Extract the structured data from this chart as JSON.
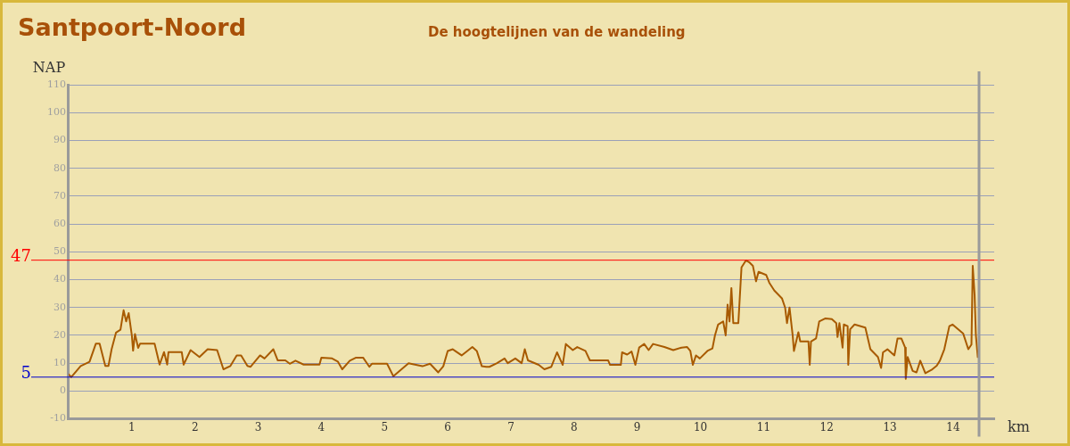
{
  "chart_data": {
    "type": "line",
    "title": "Santpoort-Noord",
    "subtitle": "De hoogtelijnen van de wandeling",
    "xlabel": "km",
    "ylabel": "NAP",
    "xlim": [
      0,
      14.65
    ],
    "xticks": [
      1,
      2,
      3,
      4,
      5,
      6,
      7,
      8,
      9,
      10,
      11,
      12,
      13,
      14
    ],
    "ylim": [
      -10,
      110
    ],
    "yticks": [
      -10,
      0,
      10,
      20,
      30,
      40,
      50,
      60,
      70,
      80,
      90,
      100,
      110
    ],
    "grid": "y",
    "legend": false,
    "marker": "none",
    "line_style": "solid",
    "ref_lines": [
      {
        "axis": "y",
        "value": 47,
        "label": "47",
        "color": "#ff0000"
      },
      {
        "axis": "y",
        "value": 5,
        "label": "5",
        "color": "#0000cc"
      },
      {
        "axis": "x",
        "value": 14.41,
        "color": "#9a9a9a"
      }
    ],
    "series": [
      {
        "color": "#a85a00",
        "x": [
          0,
          0.04,
          0.19,
          0.33,
          0.43,
          0.49,
          0.58,
          0.63,
          0.68,
          0.75,
          0.82,
          0.87,
          0.91,
          0.95,
          1.0,
          1.02,
          1.05,
          1.1,
          1.13,
          1.36,
          1.44,
          1.51,
          1.56,
          1.58,
          1.79,
          1.82,
          1.93,
          2.07,
          2.2,
          2.35,
          2.45,
          2.56,
          2.66,
          2.73,
          2.83,
          2.88,
          3.03,
          3.1,
          3.24,
          3.31,
          3.43,
          3.5,
          3.59,
          3.72,
          3.97,
          4.0,
          4.17,
          4.26,
          4.33,
          4.45,
          4.55,
          4.66,
          4.76,
          4.8,
          5.04,
          5.14,
          5.38,
          5.6,
          5.72,
          5.85,
          5.93,
          6.0,
          6.08,
          6.22,
          6.39,
          6.46,
          6.54,
          6.61,
          6.66,
          6.78,
          6.9,
          6.95,
          7.07,
          7.17,
          7.22,
          7.27,
          7.44,
          7.53,
          7.64,
          7.73,
          7.82,
          7.87,
          7.98,
          8.05,
          8.18,
          8.25,
          8.54,
          8.57,
          8.74,
          8.76,
          8.84,
          8.91,
          8.97,
          9.03,
          9.11,
          9.18,
          9.25,
          9.43,
          9.57,
          9.7,
          9.79,
          9.84,
          9.88,
          9.93,
          9.99,
          10.11,
          10.19,
          10.23,
          10.28,
          10.36,
          10.4,
          10.43,
          10.46,
          10.49,
          10.52,
          10.6,
          10.65,
          10.72,
          10.78,
          10.83,
          10.88,
          10.92,
          11.04,
          11.09,
          11.17,
          11.29,
          11.34,
          11.37,
          11.41,
          11.46,
          11.48,
          11.55,
          11.58,
          11.71,
          11.73,
          11.75,
          11.83,
          11.88,
          11.98,
          12.08,
          12.15,
          12.17,
          12.2,
          12.25,
          12.27,
          12.33,
          12.34,
          12.37,
          12.44,
          12.61,
          12.69,
          12.81,
          12.86,
          12.89,
          12.96,
          13.07,
          13.12,
          13.18,
          13.24,
          13.25,
          13.28,
          13.36,
          13.42,
          13.48,
          13.56,
          13.67,
          13.74,
          13.79,
          13.86,
          13.94,
          13.99,
          14.16,
          14.24,
          14.29,
          14.31,
          14.34,
          14.36,
          14.39
        ],
        "values": [
          6,
          5,
          9,
          10.5,
          17,
          17,
          9,
          9,
          15,
          21,
          22,
          29,
          25,
          28,
          20,
          14.5,
          20.5,
          15.5,
          17,
          17,
          9.5,
          14,
          9.5,
          14,
          14,
          9.5,
          14.7,
          12.2,
          15,
          14.7,
          7.8,
          9,
          12.8,
          12.8,
          9,
          8.7,
          12.8,
          11.7,
          15,
          11,
          11,
          9.8,
          10.9,
          9.5,
          9.5,
          12,
          11.7,
          10.6,
          7.8,
          10.9,
          12,
          12,
          8.7,
          9.8,
          9.8,
          5.3,
          10,
          8.9,
          9.8,
          6.7,
          8.9,
          14.4,
          15,
          12.8,
          15.8,
          14.4,
          8.9,
          8.7,
          8.7,
          10,
          11.7,
          10,
          11.7,
          10,
          15,
          11,
          9.4,
          7.8,
          8.7,
          13.9,
          9.4,
          16.9,
          14.7,
          15.8,
          14.4,
          11,
          11,
          9.4,
          9.4,
          13.9,
          13.1,
          14.2,
          9.4,
          15.6,
          16.9,
          14.7,
          16.9,
          15.8,
          14.7,
          15.6,
          15.8,
          14.4,
          9.4,
          12.8,
          11.7,
          14.4,
          15.3,
          20,
          23.9,
          25,
          20,
          31,
          25,
          37,
          24.4,
          24.4,
          44.4,
          46.9,
          46.1,
          45,
          39.4,
          42.8,
          41.7,
          38.9,
          36.1,
          33.3,
          30,
          24.4,
          30,
          20,
          14.4,
          21.1,
          17.8,
          17.8,
          9.4,
          17.8,
          18.9,
          25,
          26.1,
          25.8,
          24.4,
          19.4,
          24.4,
          15.6,
          23.9,
          23.3,
          9.4,
          22.2,
          23.9,
          22.8,
          15,
          12.2,
          8.3,
          13.9,
          15,
          12.8,
          18.9,
          18.9,
          15.6,
          4.4,
          12.2,
          7.2,
          6.7,
          10.9,
          6.4,
          7.8,
          9.1,
          10.9,
          15,
          23.3,
          23.9,
          20.6,
          15,
          16.7,
          45,
          34.4,
          20,
          12.2
        ]
      }
    ]
  }
}
